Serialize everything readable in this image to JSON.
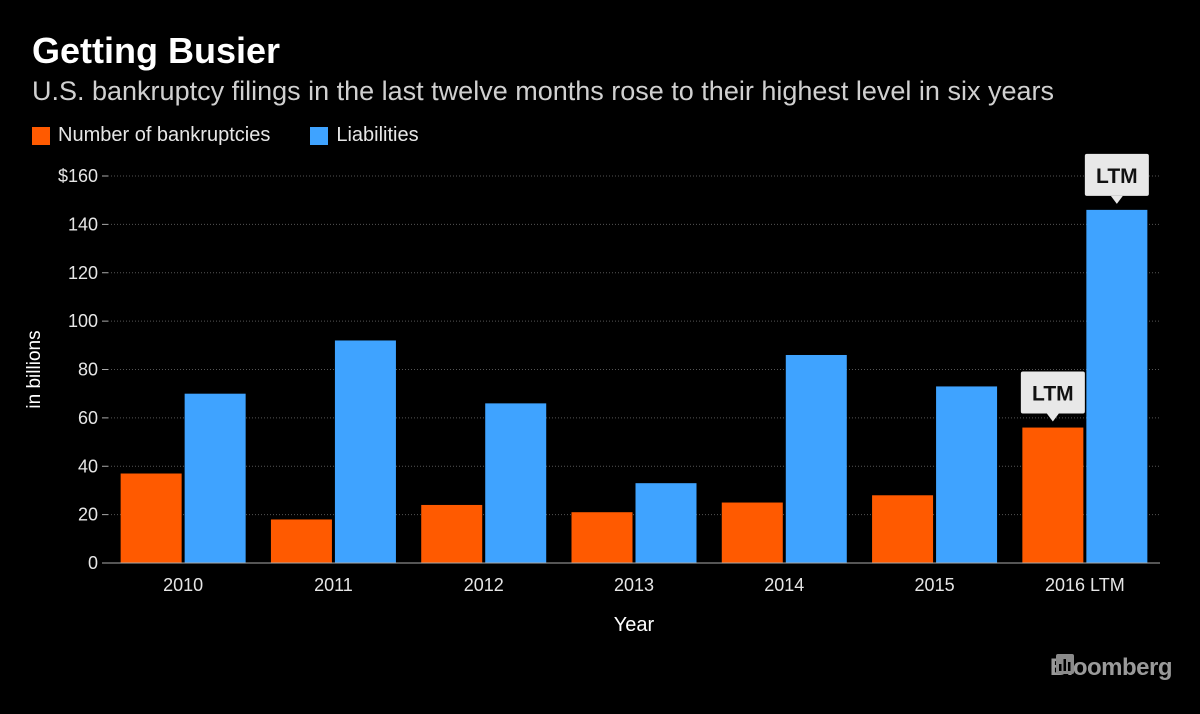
{
  "chart_data": {
    "type": "bar",
    "title": "Getting Busier",
    "subtitle": "U.S. bankruptcy filings in the last twelve months rose to their highest level in six years",
    "xlabel": "Year",
    "ylabel": "in billions",
    "ylim": [
      0,
      160
    ],
    "yticks": [
      0,
      20,
      40,
      60,
      80,
      100,
      120,
      140,
      160
    ],
    "ytick_labels": [
      "0",
      "20",
      "40",
      "60",
      "80",
      "100",
      "120",
      "140",
      "$160"
    ],
    "grid": true,
    "categories": [
      "2010",
      "2011",
      "2012",
      "2013",
      "2014",
      "2015",
      "2016 LTM"
    ],
    "series": [
      {
        "name": "Number of bankruptcies",
        "color": "#ff5a00",
        "values": [
          37,
          18,
          24,
          21,
          25,
          28,
          56
        ]
      },
      {
        "name": "Liabilities",
        "color": "#3fa3ff",
        "values": [
          70,
          92,
          66,
          33,
          86,
          73,
          146
        ]
      }
    ],
    "annotations": [
      {
        "text": "LTM",
        "series": 0,
        "category": "2016 LTM"
      },
      {
        "text": "LTM",
        "series": 1,
        "category": "2016 LTM"
      }
    ]
  },
  "footer": {
    "brand": "Bloomberg",
    "icon": "bloomberg-chart-icon"
  }
}
